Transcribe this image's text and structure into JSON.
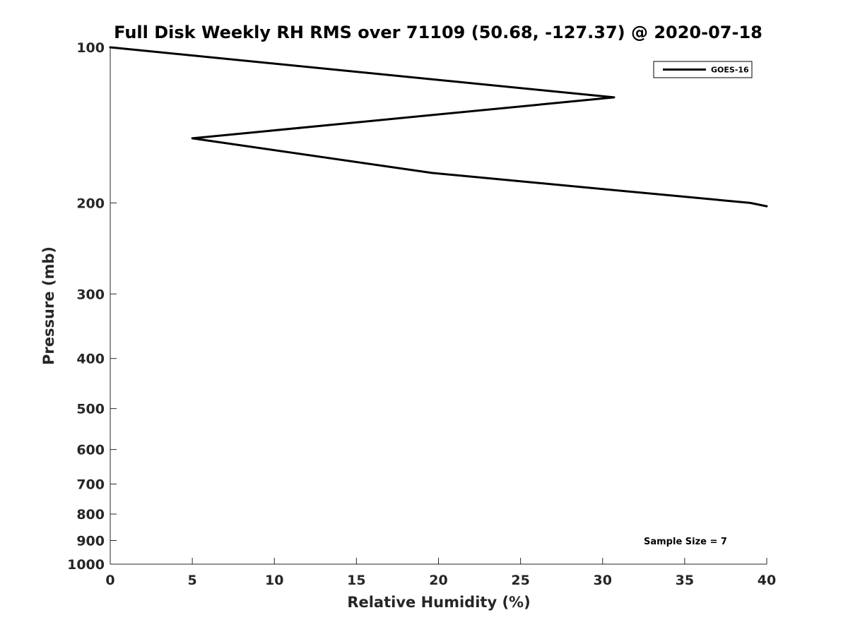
{
  "chart_data": {
    "type": "line",
    "title": "Full Disk Weekly RH RMS over 71109 (50.68, -127.37) @ 2020-07-18",
    "xlabel": "Relative Humidity (%)",
    "ylabel": "Pressure (mb)",
    "xlim": [
      0,
      40
    ],
    "ylim": [
      100,
      1000
    ],
    "y_scale": "log",
    "y_reversed": true,
    "xticks": [
      0,
      5,
      10,
      15,
      20,
      25,
      30,
      35,
      40
    ],
    "yticks": [
      100,
      200,
      300,
      400,
      500,
      600,
      700,
      800,
      900,
      1000
    ],
    "grid": false,
    "legend_position": "top-right",
    "series": [
      {
        "name": "GOES-16",
        "color": "#000000",
        "points": [
          {
            "x": 0.0,
            "y": 100
          },
          {
            "x": 30.7,
            "y": 125
          },
          {
            "x": 5.0,
            "y": 150
          },
          {
            "x": 19.6,
            "y": 175
          },
          {
            "x": 39.0,
            "y": 200
          },
          {
            "x": 40.0,
            "y": 203
          }
        ]
      }
    ],
    "annotation": "Sample Size = 7"
  }
}
